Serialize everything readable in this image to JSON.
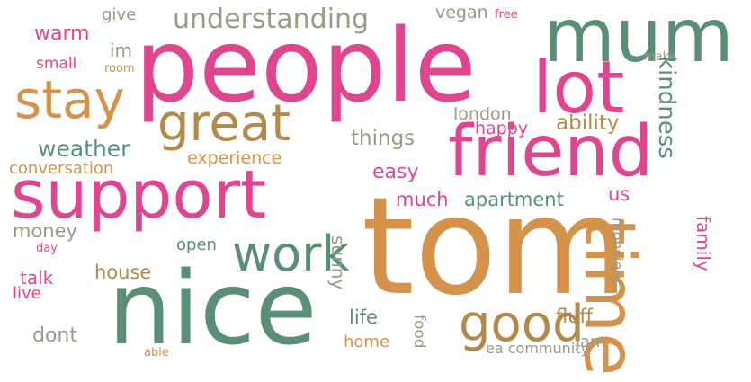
{
  "palette": {
    "pink": "#e0468f",
    "teal": "#5a8e77",
    "orange": "#d4924a",
    "olive": "#b3894a",
    "gray": "#9a9a86"
  },
  "words": [
    {
      "text": "people",
      "color": "pink"
    },
    {
      "text": "mum",
      "color": "teal"
    },
    {
      "text": "lot",
      "color": "pink"
    },
    {
      "text": "stay",
      "color": "orange"
    },
    {
      "text": "great",
      "color": "olive"
    },
    {
      "text": "friend",
      "color": "pink"
    },
    {
      "text": "support",
      "color": "pink"
    },
    {
      "text": "tom",
      "color": "orange"
    },
    {
      "text": "nice",
      "color": "teal"
    },
    {
      "text": "time",
      "color": "orange"
    },
    {
      "text": "work",
      "color": "teal"
    },
    {
      "text": "good",
      "color": "olive"
    },
    {
      "text": "understanding",
      "color": "gray"
    },
    {
      "text": "give",
      "color": "gray"
    },
    {
      "text": "warm",
      "color": "pink"
    },
    {
      "text": "im",
      "color": "gray"
    },
    {
      "text": "small",
      "color": "pink"
    },
    {
      "text": "room",
      "color": "orange"
    },
    {
      "text": "vegan",
      "color": "gray"
    },
    {
      "text": "free",
      "color": "pink"
    },
    {
      "text": "make",
      "color": "gray"
    },
    {
      "text": "kindness",
      "color": "teal"
    },
    {
      "text": "london",
      "color": "gray"
    },
    {
      "text": "happy",
      "color": "pink"
    },
    {
      "text": "ability",
      "color": "olive"
    },
    {
      "text": "things",
      "color": "gray"
    },
    {
      "text": "weather",
      "color": "teal"
    },
    {
      "text": "experience",
      "color": "orange"
    },
    {
      "text": "conversation",
      "color": "orange"
    },
    {
      "text": "easy",
      "color": "pink"
    },
    {
      "text": "much",
      "color": "pink"
    },
    {
      "text": "apartment",
      "color": "teal"
    },
    {
      "text": "us",
      "color": "pink"
    },
    {
      "text": "money",
      "color": "gray"
    },
    {
      "text": "day",
      "color": "pink"
    },
    {
      "text": "family",
      "color": "pink"
    },
    {
      "text": "open",
      "color": "teal"
    },
    {
      "text": "monsieur",
      "color": "gray"
    },
    {
      "text": "sunny",
      "color": "gray"
    },
    {
      "text": "talk",
      "color": "pink"
    },
    {
      "text": "house",
      "color": "olive"
    },
    {
      "text": "live",
      "color": "pink"
    },
    {
      "text": "life",
      "color": "teal"
    },
    {
      "text": "fluff",
      "color": "olive"
    },
    {
      "text": "dont",
      "color": "gray"
    },
    {
      "text": "home",
      "color": "orange"
    },
    {
      "text": "food",
      "color": "gray"
    },
    {
      "text": "jam",
      "color": "gray"
    },
    {
      "text": "able",
      "color": "orange"
    },
    {
      "text": "ea community",
      "color": "gray"
    }
  ]
}
